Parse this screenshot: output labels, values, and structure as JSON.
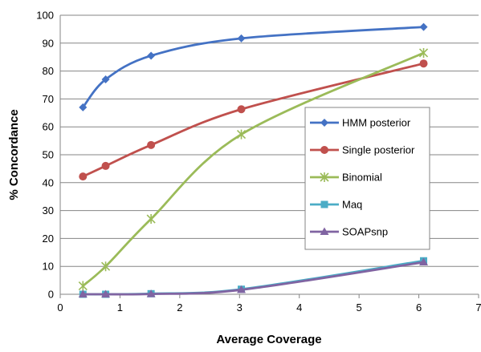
{
  "chart_data": {
    "type": "line",
    "title": "",
    "xlabel": "Average Coverage",
    "ylabel": "% Concordance",
    "xlim": [
      0,
      7
    ],
    "ylim": [
      0,
      100
    ],
    "xticks": [
      0,
      1,
      2,
      3,
      4,
      5,
      6,
      7
    ],
    "yticks": [
      0,
      10,
      20,
      30,
      40,
      50,
      60,
      70,
      80,
      90,
      100
    ],
    "grid": "horizontal",
    "legend_position": "right",
    "smooth": true,
    "series": [
      {
        "name": "HMM posterior",
        "color": "#4472C4",
        "marker": "diamond",
        "points": [
          [
            0.38,
            67
          ],
          [
            0.76,
            77
          ],
          [
            1.52,
            85.5
          ],
          [
            3.03,
            91.7
          ],
          [
            6.08,
            95.8
          ]
        ]
      },
      {
        "name": "Single posterior",
        "color": "#C0504D",
        "marker": "circle",
        "points": [
          [
            0.38,
            42.2
          ],
          [
            0.76,
            46
          ],
          [
            1.52,
            53.5
          ],
          [
            3.03,
            66.3
          ],
          [
            6.08,
            82.7
          ]
        ]
      },
      {
        "name": "Binomial",
        "color": "#9BBB59",
        "marker": "star",
        "points": [
          [
            0.38,
            3
          ],
          [
            0.76,
            10
          ],
          [
            1.52,
            27
          ],
          [
            3.03,
            57.3
          ],
          [
            6.08,
            86.5
          ]
        ]
      },
      {
        "name": "Maq",
        "color": "#4BACC6",
        "marker": "square",
        "points": [
          [
            0.38,
            0
          ],
          [
            0.76,
            0
          ],
          [
            1.52,
            0.2
          ],
          [
            3.03,
            1.8
          ],
          [
            6.08,
            12
          ]
        ]
      },
      {
        "name": "SOAPsnp",
        "color": "#8064A2",
        "marker": "triangle",
        "points": [
          [
            0.38,
            0
          ],
          [
            0.76,
            0
          ],
          [
            1.52,
            0.1
          ],
          [
            3.03,
            1.6
          ],
          [
            6.08,
            11.5
          ]
        ]
      }
    ]
  }
}
